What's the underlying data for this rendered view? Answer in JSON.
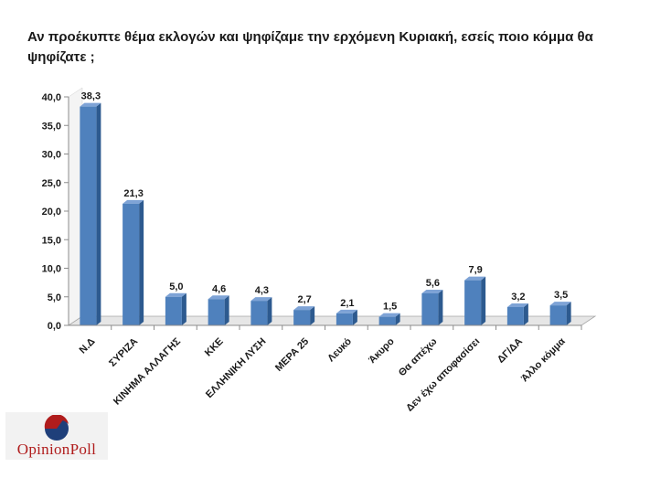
{
  "chart_data": {
    "type": "bar",
    "title": "Αν προέκυπτε θέμα εκλογών και ψηφίζαμε την ερχόμενη Κυριακή, εσείς ποιο κόμμα θα ψηφίζατε ;",
    "categories": [
      "Ν.Δ",
      "ΣΥΡΙΖΑ",
      "ΚΙΝΗΜΑ ΑΛΛΑΓΗΣ",
      "ΚΚΕ",
      "ΕΛΛΗΝΙΚΗ ΛΥΣΗ",
      "ΜΕΡΑ 25",
      "Λευκό",
      "Άκυρο",
      "Θα απέχω",
      "Δεν έχω αποφασίσει",
      "ΔΓ/ΔΑ",
      "Άλλο κόμμα"
    ],
    "values": [
      38.3,
      21.3,
      5.0,
      4.6,
      4.3,
      2.7,
      2.1,
      1.5,
      5.6,
      7.9,
      3.2,
      3.5
    ],
    "value_labels": [
      "38,3",
      "21,3",
      "5,0",
      "4,6",
      "4,3",
      "2,7",
      "2,1",
      "1,5",
      "5,6",
      "7,9",
      "3,2",
      "3,5"
    ],
    "yticks": [
      "0,0",
      "5,0",
      "10,0",
      "15,0",
      "20,0",
      "25,0",
      "30,0",
      "35,0",
      "40,0"
    ],
    "ylim": [
      0,
      40
    ],
    "xlabel": "",
    "ylabel": "",
    "grid": false,
    "legend": "none",
    "bar_color": "#4f81bd",
    "bar_side_color": "#2d5a8f",
    "bar_top_color": "#7ea3d6"
  },
  "logo": {
    "text": "OpinionPoll",
    "colors": [
      "#b01c1c",
      "#1f3f7a"
    ]
  }
}
